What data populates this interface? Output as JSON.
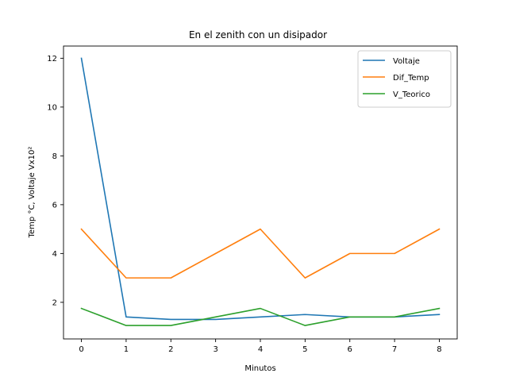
{
  "chart_data": {
    "type": "line",
    "title": "En el zenith con un disipador",
    "xlabel": "Minutos",
    "ylabel": "Temp °C, Voltaje Vx10²",
    "x": [
      0,
      1,
      2,
      3,
      4,
      5,
      6,
      7,
      8
    ],
    "xlim": [
      -0.4,
      8.4
    ],
    "ylim": [
      0.5,
      12.5
    ],
    "xticks": [
      "0",
      "1",
      "2",
      "3",
      "4",
      "5",
      "6",
      "7",
      "8"
    ],
    "yticks": [
      "2",
      "4",
      "6",
      "8",
      "10",
      "12"
    ],
    "grid": false,
    "legend_position": "top-right",
    "series": [
      {
        "name": "Voltaje",
        "color": "#1f77b4",
        "values": [
          12,
          1.4,
          1.3,
          1.3,
          1.4,
          1.5,
          1.4,
          1.4,
          1.5
        ]
      },
      {
        "name": "Dif_Temp",
        "color": "#ff7f0e",
        "values": [
          5,
          3,
          3,
          4,
          5,
          3,
          4,
          4,
          5
        ]
      },
      {
        "name": "V_Teorico",
        "color": "#2ca02c",
        "values": [
          1.75,
          1.05,
          1.05,
          1.4,
          1.75,
          1.05,
          1.4,
          1.4,
          1.75
        ]
      }
    ]
  }
}
